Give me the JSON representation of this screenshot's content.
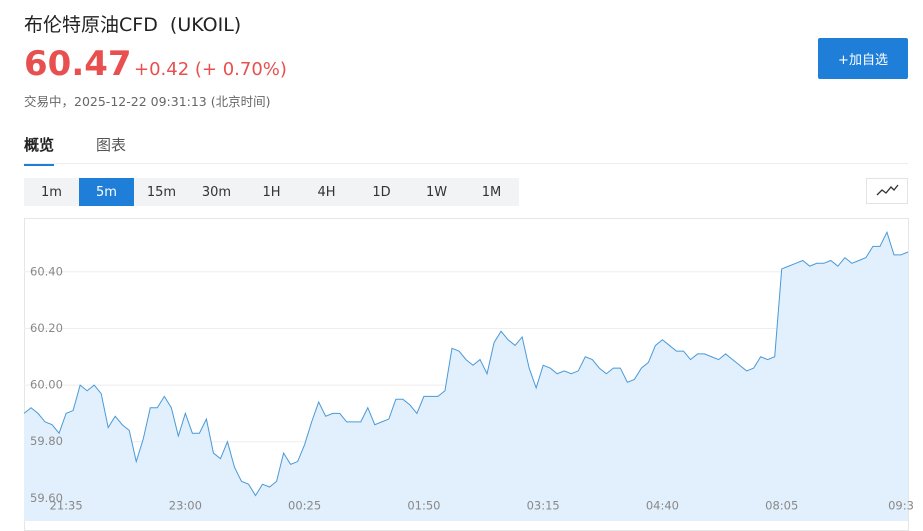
{
  "header": {
    "title": "布伦特原油CFD  (UKOIL)",
    "price": "60.47",
    "change": "+0.42 (+ 0.70%)",
    "status": "交易中，2025-12-22 09:31:13 (北京时间)",
    "button": "+加自选"
  },
  "tabs": [
    "概览",
    "图表"
  ],
  "timeframes": [
    "1m",
    "5m",
    "15m",
    "30m",
    "1H",
    "4H",
    "1D",
    "1W",
    "1M"
  ],
  "chart_data": {
    "type": "area",
    "categories": [
      null,
      null,
      null,
      null,
      null,
      null,
      "21:35",
      null,
      null,
      null,
      null,
      null,
      null,
      null,
      null,
      null,
      null,
      null,
      null,
      null,
      null,
      null,
      null,
      "23:00",
      null,
      null,
      null,
      null,
      null,
      null,
      null,
      null,
      null,
      null,
      null,
      null,
      null,
      null,
      null,
      null,
      "00:25",
      null,
      null,
      null,
      null,
      null,
      null,
      null,
      null,
      null,
      null,
      null,
      null,
      null,
      null,
      null,
      null,
      "01:50",
      null,
      null,
      null,
      null,
      null,
      null,
      null,
      null,
      null,
      null,
      null,
      null,
      null,
      null,
      null,
      null,
      "03:15",
      null,
      null,
      null,
      null,
      null,
      null,
      null,
      null,
      null,
      null,
      null,
      null,
      null,
      null,
      null,
      null,
      "04:40",
      null,
      null,
      null,
      null,
      null,
      null,
      null,
      null,
      null,
      null,
      null,
      null,
      null,
      null,
      null,
      null,
      "08:05",
      null,
      null,
      null,
      null,
      null,
      null,
      null,
      null,
      null,
      null,
      null,
      null,
      null,
      null,
      null,
      null,
      "09:3",
      null
    ],
    "values": [
      59.9,
      59.92,
      59.9,
      59.87,
      59.86,
      59.83,
      59.9,
      59.91,
      60.0,
      59.98,
      60.0,
      59.97,
      59.85,
      59.89,
      59.86,
      59.84,
      59.73,
      59.81,
      59.92,
      59.92,
      59.96,
      59.92,
      59.82,
      59.9,
      59.83,
      59.83,
      59.88,
      59.76,
      59.74,
      59.8,
      59.71,
      59.66,
      59.65,
      59.61,
      59.65,
      59.64,
      59.66,
      59.76,
      59.72,
      59.73,
      59.79,
      59.87,
      59.94,
      59.89,
      59.9,
      59.9,
      59.87,
      59.87,
      59.87,
      59.92,
      59.86,
      59.87,
      59.88,
      59.95,
      59.95,
      59.93,
      59.9,
      59.96,
      59.96,
      59.96,
      59.98,
      60.13,
      60.12,
      60.09,
      60.07,
      60.09,
      60.04,
      60.15,
      60.19,
      60.16,
      60.14,
      60.17,
      60.06,
      59.99,
      60.07,
      60.06,
      60.04,
      60.05,
      60.04,
      60.05,
      60.1,
      60.09,
      60.06,
      60.04,
      60.06,
      60.06,
      60.01,
      60.02,
      60.06,
      60.08,
      60.14,
      60.16,
      60.14,
      60.12,
      60.12,
      60.09,
      60.11,
      60.11,
      60.1,
      60.09,
      60.11,
      60.09,
      60.07,
      60.05,
      60.06,
      60.1,
      60.09,
      60.1,
      60.41,
      60.42,
      60.43,
      60.44,
      60.42,
      60.43,
      60.43,
      60.44,
      60.42,
      60.45,
      60.43,
      60.44,
      60.45,
      60.49,
      60.49,
      60.54,
      60.46,
      60.46,
      60.47
    ],
    "color": "#4a9ad8",
    "ylim": [
      59.52,
      60.59
    ],
    "yticks": [
      {
        "value": 59.6,
        "label": "59.60"
      },
      {
        "value": 59.8,
        "label": "59.80"
      },
      {
        "value": 60.0,
        "label": "60.00"
      },
      {
        "value": 60.2,
        "label": "60.20"
      },
      {
        "value": 60.4,
        "label": "60.40"
      }
    ],
    "grid": true
  }
}
